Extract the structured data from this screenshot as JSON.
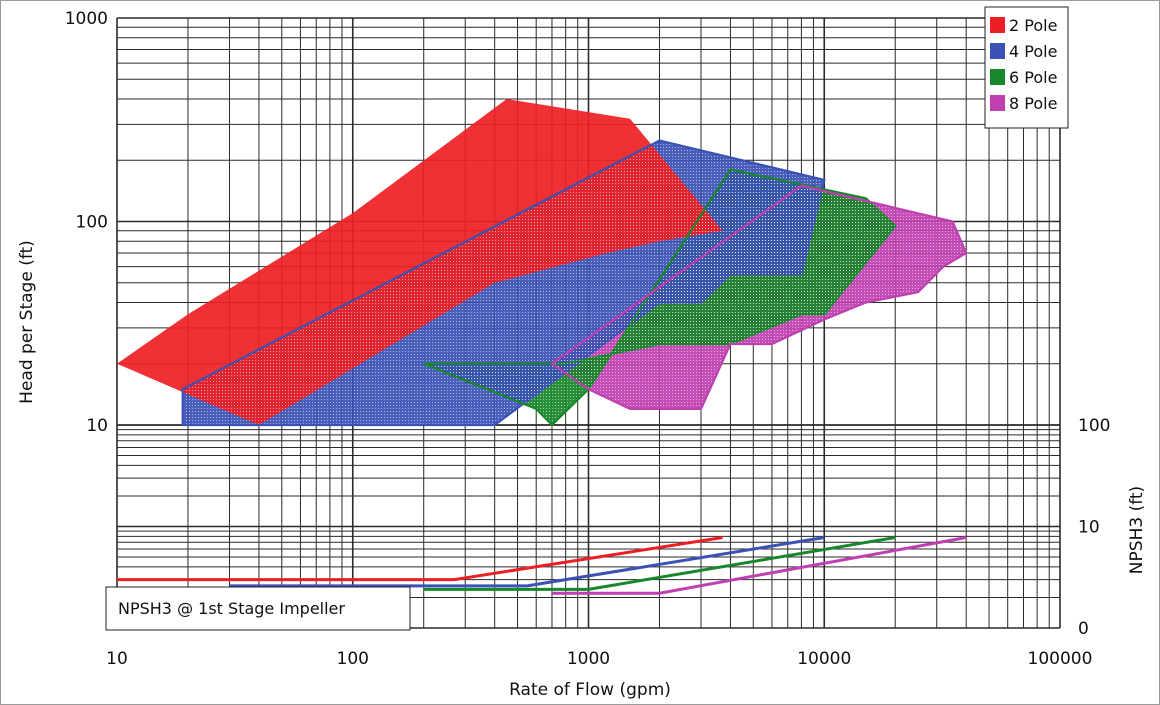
{
  "chart_data": {
    "type": "area",
    "xlabel": "Rate of Flow (gpm)",
    "ylabel": "Head per Stage (ft)",
    "y2label": "NPSH3 (ft)",
    "x_scale": "log",
    "y_scale": "log",
    "xlim": [
      10,
      100000
    ],
    "ylim": [
      10,
      1000
    ],
    "x_ticks": [
      "10",
      "100",
      "1000",
      "10000",
      "100000"
    ],
    "y_ticks": [
      "1000",
      "100",
      "10"
    ],
    "y2_ticks": [
      "100",
      "10",
      "0"
    ],
    "grid": true,
    "legend_position": "top-right",
    "annotation": "NPSH3 @ 1st Stage Impeller",
    "series": [
      {
        "name": "2 Pole",
        "color": "#ee1f24",
        "head_envelope": [
          [
            10,
            20
          ],
          [
            20,
            35
          ],
          [
            100,
            110
          ],
          [
            450,
            400
          ],
          [
            1500,
            320
          ],
          [
            3700,
            90
          ],
          [
            2000,
            80
          ],
          [
            1200,
            70
          ],
          [
            400,
            50
          ],
          [
            40,
            10
          ],
          [
            10,
            20
          ]
        ],
        "npsh3": [
          [
            10,
            3.0
          ],
          [
            270,
            3.0
          ],
          [
            3700,
            7.8
          ]
        ]
      },
      {
        "name": "4 Pole",
        "color": "#3a51b5",
        "head_envelope": [
          [
            19,
            10
          ],
          [
            19,
            15
          ],
          [
            2000,
            250
          ],
          [
            10000,
            160
          ],
          [
            8000,
            55
          ],
          [
            4000,
            55
          ],
          [
            3000,
            40
          ],
          [
            2000,
            40
          ],
          [
            400,
            10
          ],
          [
            19,
            10
          ]
        ],
        "npsh3": [
          [
            30,
            2.6
          ],
          [
            550,
            2.6
          ],
          [
            10000,
            7.8
          ]
        ]
      },
      {
        "name": "6 Pole",
        "color": "#18862a",
        "head_envelope": [
          [
            200,
            20
          ],
          [
            600,
            12
          ],
          [
            700,
            10
          ],
          [
            1000,
            15
          ],
          [
            4000,
            180
          ],
          [
            15000,
            130
          ],
          [
            20000,
            95
          ],
          [
            10000,
            35
          ],
          [
            8000,
            35
          ],
          [
            4000,
            25
          ],
          [
            2000,
            25
          ],
          [
            800,
            20
          ],
          [
            200,
            20
          ]
        ],
        "npsh3": [
          [
            200,
            2.4
          ],
          [
            1000,
            2.4
          ],
          [
            20000,
            7.8
          ]
        ]
      },
      {
        "name": "8 Pole",
        "color": "#bf3fb0",
        "head_envelope": [
          [
            700,
            20
          ],
          [
            1000,
            15
          ],
          [
            1500,
            12
          ],
          [
            3000,
            12
          ],
          [
            4000,
            25
          ],
          [
            6000,
            25
          ],
          [
            10000,
            33
          ],
          [
            15000,
            40
          ],
          [
            25000,
            45
          ],
          [
            32000,
            60
          ],
          [
            40000,
            70
          ],
          [
            35000,
            100
          ],
          [
            8000,
            150
          ],
          [
            700,
            20
          ]
        ],
        "npsh3": [
          [
            700,
            2.2
          ],
          [
            2000,
            2.2
          ],
          [
            40000,
            7.8
          ]
        ]
      }
    ]
  }
}
